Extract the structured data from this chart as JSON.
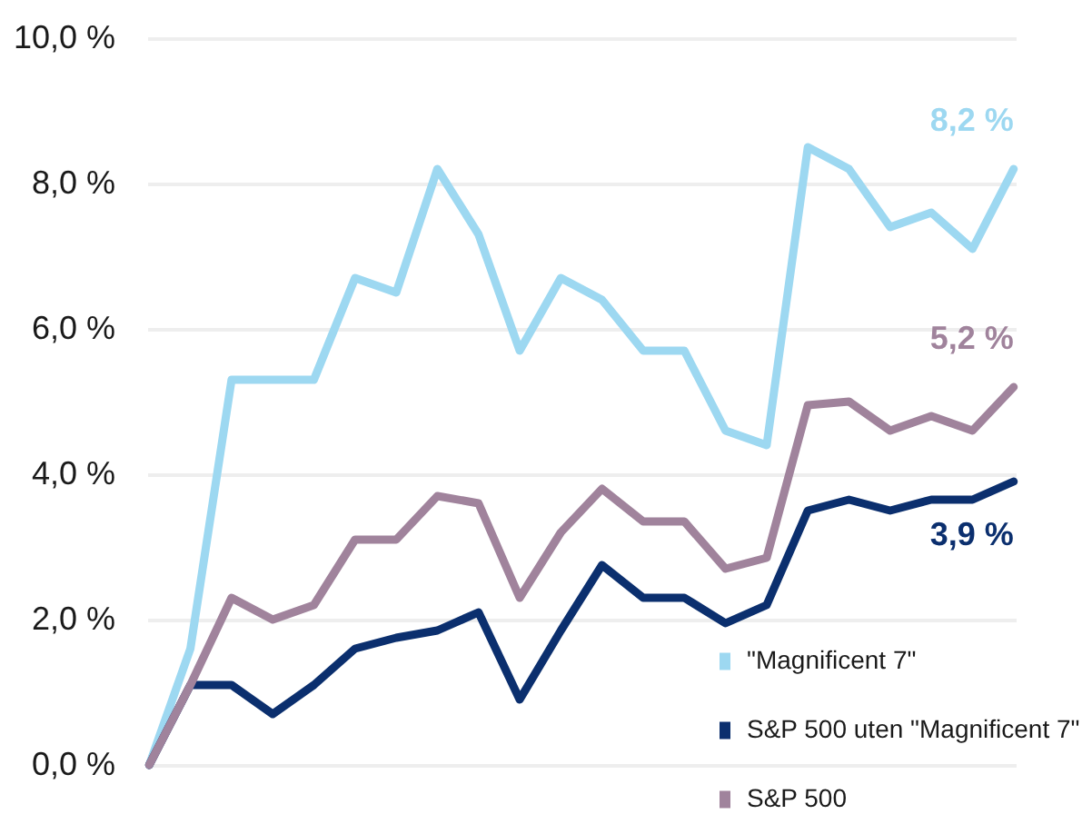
{
  "chart_data": {
    "type": "line",
    "categories": [
      null,
      null,
      null,
      null,
      null,
      null,
      null,
      null,
      null,
      null,
      null,
      null,
      null,
      null,
      null,
      null,
      null,
      null,
      null,
      null,
      null,
      null
    ],
    "series": [
      {
        "name": "\"Magnificent 7\"",
        "color": "#9dd8f1",
        "values": [
          0,
          1.6,
          5.3,
          5.3,
          5.3,
          6.7,
          6.5,
          8.2,
          7.3,
          5.7,
          6.7,
          6.4,
          5.7,
          5.7,
          4.6,
          4.4,
          8.5,
          8.2,
          7.4,
          7.6,
          7.1,
          8.2
        ],
        "value_labels": [
          null,
          null,
          null,
          null,
          null,
          null,
          null,
          null,
          null,
          null,
          null,
          null,
          null,
          null,
          null,
          null,
          null,
          null,
          null,
          null,
          null,
          "8,2 %"
        ]
      },
      {
        "name": "S&P 500 uten \"Magnificent 7\"",
        "color": "#0b2f6e",
        "values": [
          0,
          1.1,
          1.1,
          0.7,
          1.1,
          1.6,
          1.75,
          1.85,
          2.1,
          0.9,
          1.85,
          2.75,
          2.3,
          2.3,
          1.95,
          2.2,
          3.5,
          3.65,
          3.5,
          3.65,
          3.65,
          3.9
        ],
        "value_labels": [
          null,
          null,
          null,
          null,
          null,
          null,
          null,
          null,
          null,
          null,
          null,
          null,
          null,
          null,
          null,
          null,
          null,
          null,
          null,
          null,
          null,
          "3,9 %"
        ]
      },
      {
        "name": "S&P 500",
        "color": "#a0839c",
        "values": [
          0,
          1.1,
          2.3,
          2.0,
          2.2,
          3.1,
          3.1,
          3.7,
          3.6,
          2.3,
          3.2,
          3.8,
          3.35,
          3.35,
          2.7,
          2.85,
          4.95,
          5.0,
          4.6,
          4.8,
          4.6,
          5.2
        ],
        "value_labels": [
          null,
          null,
          null,
          null,
          null,
          null,
          null,
          null,
          null,
          null,
          null,
          null,
          null,
          null,
          null,
          null,
          null,
          null,
          null,
          null,
          null,
          "5,2 %"
        ]
      }
    ],
    "ylim": [
      0,
      10
    ],
    "yticks": [
      {
        "value": 0,
        "label": "0,0 %"
      },
      {
        "value": 2,
        "label": "2,0 %"
      },
      {
        "value": 4,
        "label": "4,0 %"
      },
      {
        "value": 6,
        "label": "6,0 %"
      },
      {
        "value": 8,
        "label": "8,0 %"
      },
      {
        "value": 10,
        "label": "10,0 %"
      }
    ],
    "grid": "y",
    "legend": "bottom right",
    "tick_labels": "y",
    "line_style": "solid",
    "marker": "none"
  }
}
